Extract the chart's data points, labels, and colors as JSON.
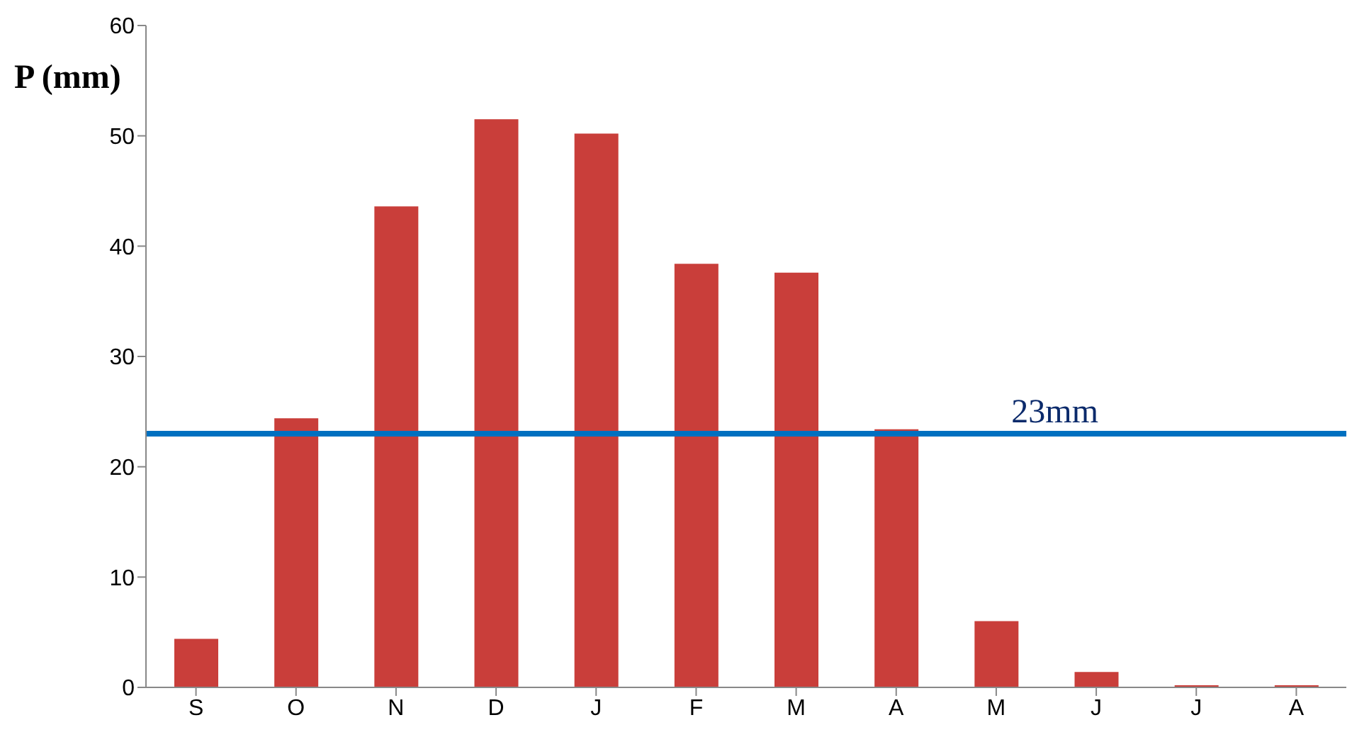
{
  "chart_data": {
    "type": "bar",
    "ylabel": "P (mm)",
    "categories": [
      "S",
      "O",
      "N",
      "D",
      "J",
      "F",
      "M",
      "A",
      "M",
      "J",
      "J",
      "A"
    ],
    "values": [
      4.4,
      24.4,
      43.6,
      51.5,
      50.2,
      38.4,
      37.6,
      23.4,
      6.0,
      1.4,
      0.2,
      0.2
    ],
    "color": "#c93e3a",
    "ylim": [
      0,
      60
    ],
    "yticks": [
      0,
      10,
      20,
      30,
      40,
      50,
      60
    ],
    "grid": false,
    "ref_lines": [
      {
        "axis": "y",
        "value": 23,
        "label": "23mm",
        "color": "#0070c0"
      }
    ]
  }
}
